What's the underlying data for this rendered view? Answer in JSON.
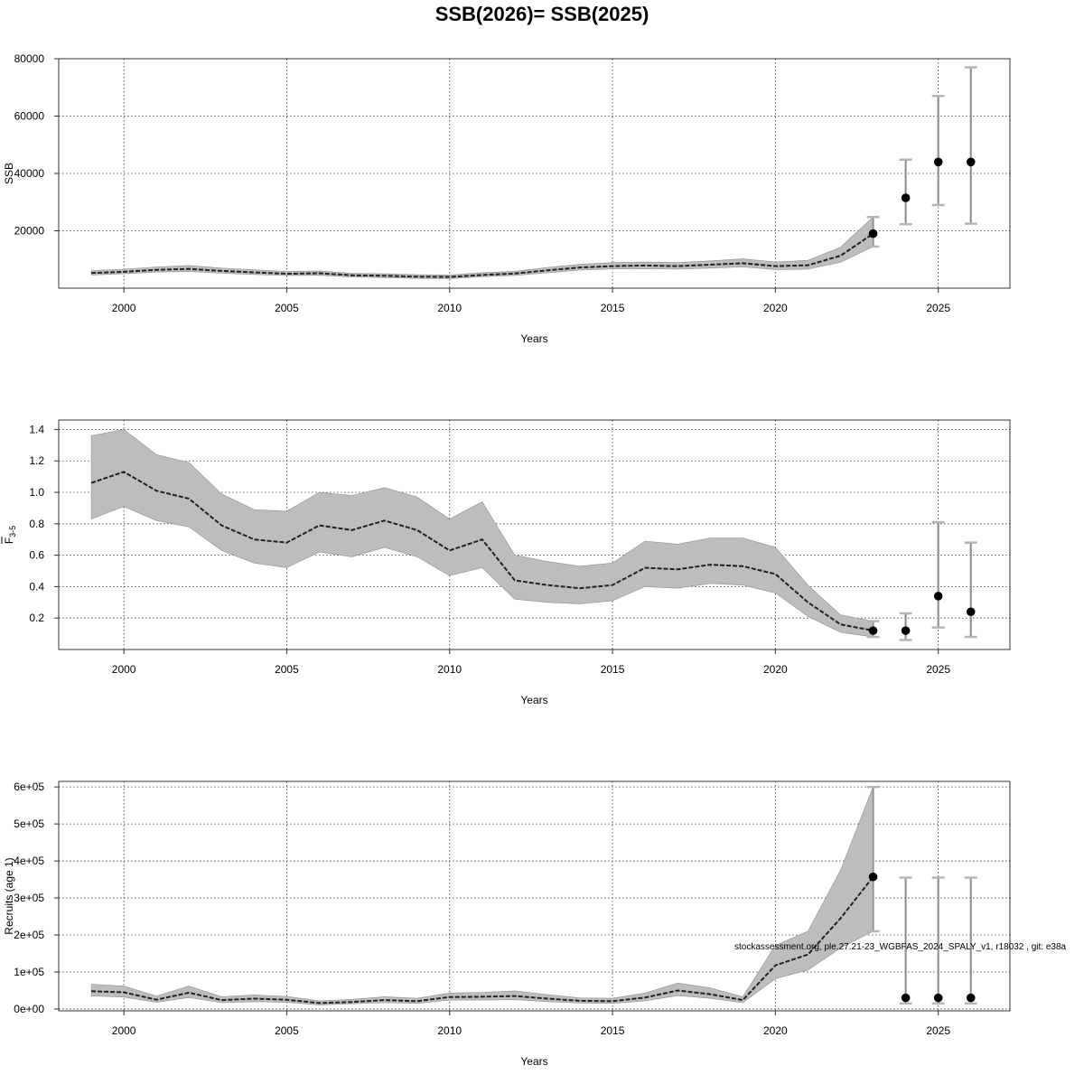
{
  "page_title": "SSB(2026)= SSB(2025)",
  "watermark": "stockassessment.org, ple.27.21-23_WGBFAS_2024_SPALY_v1, r18032 , git: e38a",
  "chart_data": [
    {
      "type": "line",
      "id": "ssb",
      "title": "SSB(2026)= SSB(2025)",
      "xlabel": "Years",
      "ylabel": "SSB",
      "xlim": [
        1998,
        2027.2
      ],
      "ylim": [
        0,
        80000
      ],
      "xticks": [
        2000,
        2005,
        2010,
        2015,
        2020,
        2025
      ],
      "yticks": [
        20000,
        40000,
        60000,
        80000
      ],
      "ytick_labels": [
        "20000",
        "40000",
        "60000",
        "80000"
      ],
      "grid": true,
      "x": [
        1999,
        2000,
        2001,
        2002,
        2003,
        2004,
        2005,
        2006,
        2007,
        2008,
        2009,
        2010,
        2011,
        2012,
        2013,
        2014,
        2015,
        2016,
        2017,
        2018,
        2019,
        2020,
        2021,
        2022,
        2023
      ],
      "estimate": [
        5300,
        5700,
        6400,
        6700,
        6000,
        5500,
        5000,
        5200,
        4500,
        4300,
        4000,
        3900,
        4600,
        5100,
        6200,
        7200,
        7700,
        7900,
        7700,
        8200,
        8700,
        7700,
        8000,
        11300,
        19000
      ],
      "lower": [
        4600,
        5000,
        5600,
        5800,
        5200,
        4800,
        4400,
        4500,
        3900,
        3700,
        3400,
        3300,
        4000,
        4400,
        5400,
        6300,
        6700,
        6800,
        6600,
        7000,
        7400,
        6500,
        6600,
        9000,
        14500
      ],
      "upper": [
        6100,
        6600,
        7400,
        7900,
        7000,
        6400,
        5800,
        6000,
        5200,
        5000,
        4700,
        4600,
        5400,
        5900,
        7200,
        8300,
        8900,
        9100,
        8900,
        9500,
        10200,
        9100,
        9700,
        14300,
        24800
      ],
      "forecast": [
        {
          "year": 2023,
          "value": 19000,
          "lower": 14500,
          "upper": 24800
        },
        {
          "year": 2024,
          "value": 31500,
          "lower": 22300,
          "upper": 44800
        },
        {
          "year": 2025,
          "value": 44000,
          "lower": 29000,
          "upper": 67000
        },
        {
          "year": 2026,
          "value": 44000,
          "lower": 22500,
          "upper": 77000
        }
      ]
    },
    {
      "type": "line",
      "id": "fbar",
      "xlabel": "Years",
      "ylabel_main": "F",
      "ylabel_sub": "3-5",
      "xlim": [
        1998,
        2027.2
      ],
      "ylim": [
        0,
        1.46
      ],
      "xticks": [
        2000,
        2005,
        2010,
        2015,
        2020,
        2025
      ],
      "yticks": [
        0.2,
        0.4,
        0.6,
        0.8,
        1.0,
        1.2,
        1.4
      ],
      "ytick_labels": [
        "0.2",
        "0.4",
        "0.6",
        "0.8",
        "1.0",
        "1.2",
        "1.4"
      ],
      "grid": true,
      "x": [
        1999,
        2000,
        2001,
        2002,
        2003,
        2004,
        2005,
        2006,
        2007,
        2008,
        2009,
        2010,
        2011,
        2012,
        2013,
        2014,
        2015,
        2016,
        2017,
        2018,
        2019,
        2020,
        2021,
        2022,
        2023
      ],
      "estimate": [
        1.06,
        1.13,
        1.01,
        0.96,
        0.79,
        0.7,
        0.68,
        0.79,
        0.76,
        0.82,
        0.76,
        0.63,
        0.7,
        0.44,
        0.41,
        0.39,
        0.41,
        0.52,
        0.51,
        0.54,
        0.53,
        0.48,
        0.3,
        0.16,
        0.12
      ],
      "lower": [
        0.83,
        0.91,
        0.82,
        0.78,
        0.63,
        0.55,
        0.52,
        0.62,
        0.59,
        0.65,
        0.59,
        0.47,
        0.52,
        0.32,
        0.3,
        0.29,
        0.31,
        0.4,
        0.39,
        0.42,
        0.41,
        0.36,
        0.21,
        0.11,
        0.08
      ],
      "upper": [
        1.36,
        1.4,
        1.24,
        1.19,
        0.99,
        0.89,
        0.88,
        1.0,
        0.98,
        1.03,
        0.97,
        0.83,
        0.94,
        0.6,
        0.56,
        0.53,
        0.55,
        0.69,
        0.67,
        0.71,
        0.71,
        0.65,
        0.41,
        0.22,
        0.18
      ],
      "forecast": [
        {
          "year": 2023,
          "value": 0.12,
          "lower": 0.08,
          "upper": 0.18
        },
        {
          "year": 2024,
          "value": 0.12,
          "lower": 0.06,
          "upper": 0.23
        },
        {
          "year": 2025,
          "value": 0.34,
          "lower": 0.14,
          "upper": 0.81
        },
        {
          "year": 2026,
          "value": 0.24,
          "lower": 0.08,
          "upper": 0.68
        }
      ]
    },
    {
      "type": "line",
      "id": "recruits",
      "xlabel": "Years",
      "ylabel": "Recruits (age 1)",
      "xlim": [
        1998,
        2027.2
      ],
      "ylim": [
        -5000,
        615000
      ],
      "xticks": [
        2000,
        2005,
        2010,
        2015,
        2020,
        2025
      ],
      "yticks": [
        0,
        100000,
        200000,
        300000,
        400000,
        500000,
        600000
      ],
      "ytick_labels": [
        "0e+00",
        "1e+05",
        "2e+05",
        "3e+05",
        "4e+05",
        "5e+05",
        "6e+05"
      ],
      "grid": true,
      "x": [
        1999,
        2000,
        2001,
        2002,
        2003,
        2004,
        2005,
        2006,
        2007,
        2008,
        2009,
        2010,
        2011,
        2012,
        2013,
        2014,
        2015,
        2016,
        2017,
        2018,
        2019,
        2020,
        2021,
        2022,
        2023
      ],
      "estimate": [
        48000,
        45000,
        25000,
        44000,
        24000,
        28000,
        25000,
        16000,
        19000,
        24000,
        21000,
        32000,
        33000,
        35000,
        28000,
        22000,
        21000,
        31000,
        50000,
        40000,
        24000,
        118000,
        147000,
        245000,
        357000
      ],
      "lower": [
        35000,
        32000,
        18000,
        31000,
        17000,
        20000,
        18000,
        11000,
        14000,
        17000,
        15000,
        24000,
        24000,
        25000,
        20000,
        16000,
        15000,
        22000,
        36000,
        29000,
        17000,
        82000,
        105000,
        165000,
        210000
      ],
      "upper": [
        67000,
        62000,
        35000,
        62000,
        33000,
        38000,
        34000,
        22000,
        26000,
        33000,
        29000,
        43000,
        45000,
        49000,
        39000,
        30000,
        29000,
        43000,
        70000,
        57000,
        33000,
        172000,
        210000,
        375000,
        600000
      ],
      "forecast": [
        {
          "year": 2023,
          "value": 357000,
          "lower": 210000,
          "upper": 600000
        },
        {
          "year": 2024,
          "value": 30000,
          "lower": 15000,
          "upper": 355000
        },
        {
          "year": 2025,
          "value": 30000,
          "lower": 15000,
          "upper": 355000
        },
        {
          "year": 2026,
          "value": 30000,
          "lower": 15000,
          "upper": 355000
        }
      ]
    }
  ]
}
